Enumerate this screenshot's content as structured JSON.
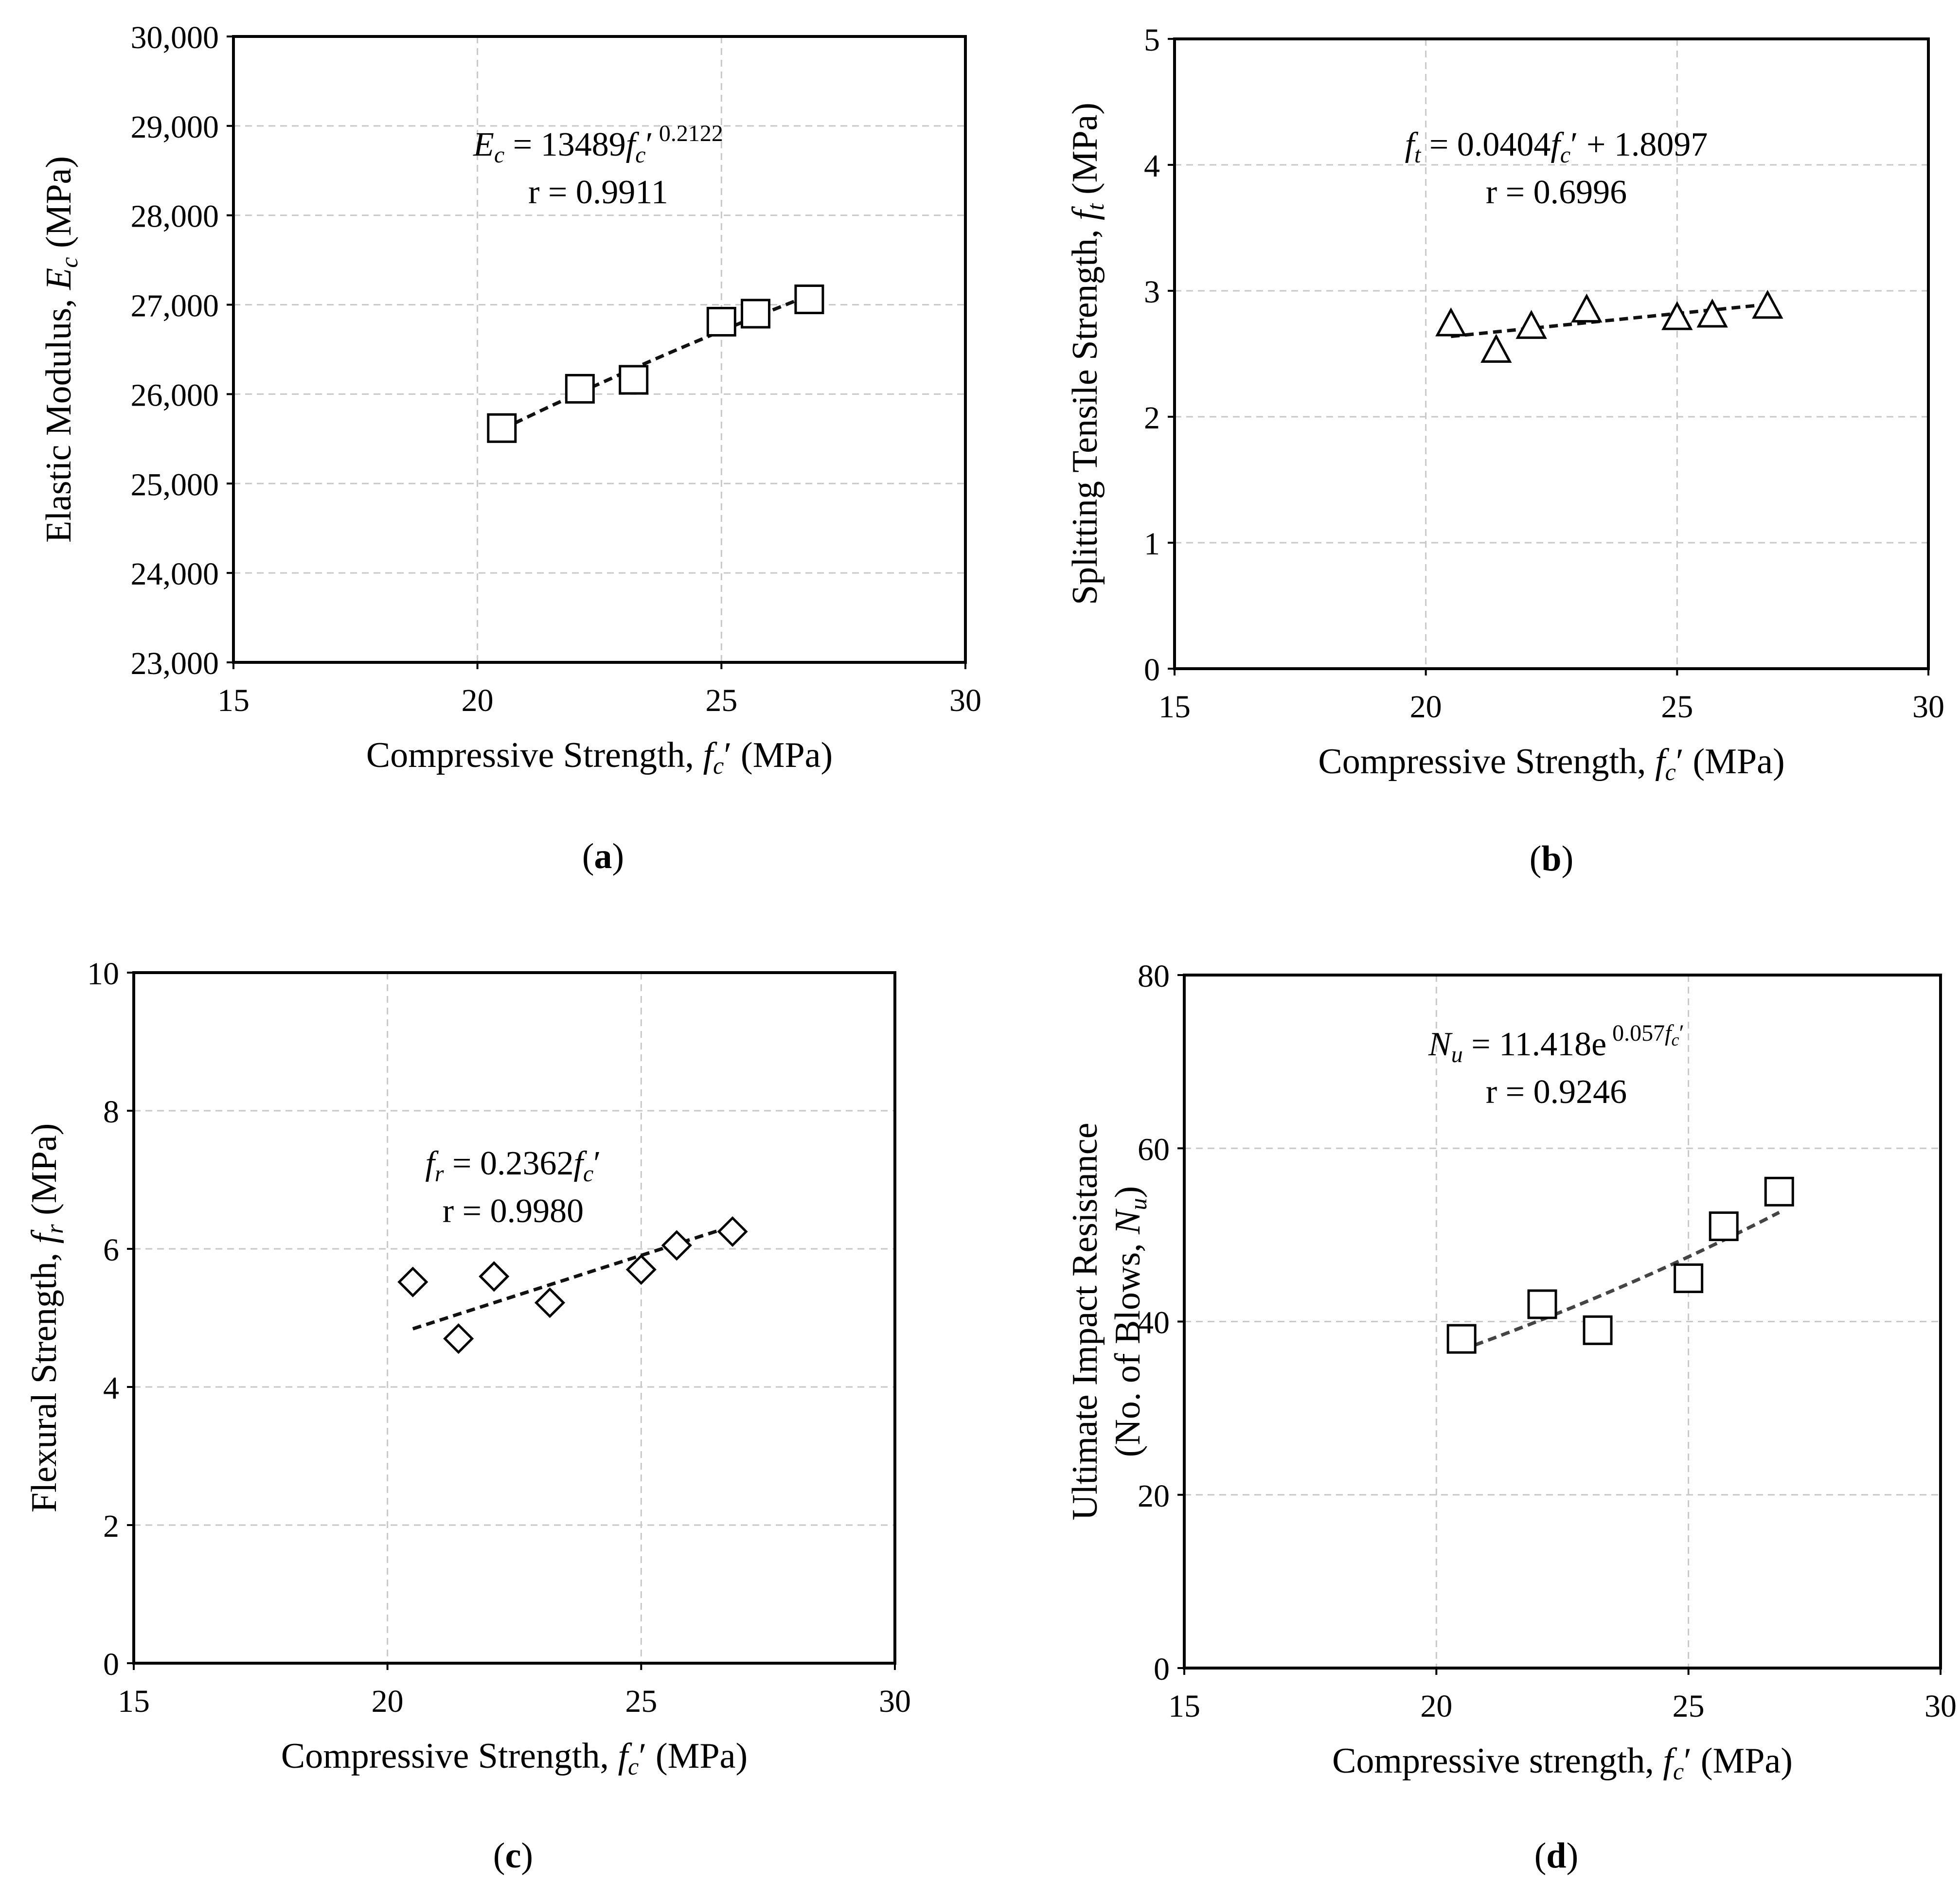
{
  "figure": {
    "panels": [
      "a",
      "b",
      "c",
      "d"
    ]
  },
  "chart_data": [
    {
      "id": "a",
      "type": "scatter",
      "panel_label": "a",
      "marker": "square",
      "xlabel_prefix": "Compressive Strength,",
      "xlabel_var": "f",
      "xlabel_sub": "c",
      "xlabel_suffix": "′ (MPa)",
      "ylabel_prefix": "Elastic Modulus,",
      "ylabel_var": "E",
      "ylabel_sub": "c",
      "ylabel_suffix": "(MPa)",
      "xlim": [
        15,
        30
      ],
      "ylim": [
        23000,
        30000
      ],
      "xticks": [
        15,
        20,
        25,
        30
      ],
      "yticks": [
        23000,
        24000,
        25000,
        26000,
        27000,
        28000,
        29000,
        30000
      ],
      "ytick_labels": [
        "23,000",
        "24,000",
        "25,000",
        "26,000",
        "27,000",
        "28,000",
        "29,000",
        "30,000"
      ],
      "grid": true,
      "x": [
        20.5,
        22.1,
        23.2,
        25.0,
        25.7,
        26.8
      ],
      "y": [
        25620,
        26060,
        26160,
        26810,
        26900,
        27060
      ],
      "trend": {
        "kind": "power",
        "a": 13489,
        "b": 0.2122,
        "x_start": 20.5,
        "x_end": 26.8
      },
      "equation": {
        "lhs_var": "E",
        "lhs_sub": "c",
        "rhs": "= 13489",
        "rhs_var": "f",
        "rhs_sub": "c",
        "rhs_tail": "′",
        "sup": "0.2122"
      },
      "r_text": "r = 0.9911"
    },
    {
      "id": "b",
      "type": "scatter",
      "panel_label": "b",
      "marker": "triangle",
      "xlabel_prefix": "Compressive Strength,",
      "xlabel_var": "f",
      "xlabel_sub": "c",
      "xlabel_suffix": "′ (MPa)",
      "ylabel_prefix": "Splitting Tensile Strength,",
      "ylabel_var": "f",
      "ylabel_sub": "t",
      "ylabel_suffix": "(MPa)",
      "xlim": [
        15,
        30
      ],
      "ylim": [
        0,
        5
      ],
      "xticks": [
        15,
        20,
        25,
        30
      ],
      "yticks": [
        0,
        1,
        2,
        3,
        4,
        5
      ],
      "ytick_labels": [
        "0",
        "1",
        "2",
        "3",
        "4",
        "5"
      ],
      "grid": true,
      "x": [
        20.5,
        21.4,
        22.1,
        23.2,
        25.0,
        25.7,
        26.8
      ],
      "y": [
        2.74,
        2.53,
        2.72,
        2.85,
        2.79,
        2.81,
        2.88
      ],
      "trend": {
        "kind": "linear",
        "a": 0.0404,
        "b": 1.8097,
        "x_start": 20.5,
        "x_end": 26.8
      },
      "equation": {
        "lhs_var": "f",
        "lhs_sub": "t",
        "rhs": "= 0.0404",
        "rhs_var": "f",
        "rhs_sub": "c",
        "rhs_tail": "′ + 1.8097",
        "sup": ""
      },
      "r_text": "r = 0.6996"
    },
    {
      "id": "c",
      "type": "scatter",
      "panel_label": "c",
      "marker": "diamond",
      "xlabel_prefix": "Compressive Strength,",
      "xlabel_var": "f",
      "xlabel_sub": "c",
      "xlabel_suffix": "′ (MPa)",
      "ylabel_prefix": "Flexural Strength,",
      "ylabel_var": "f",
      "ylabel_sub": "r",
      "ylabel_suffix": "(MPa)",
      "xlim": [
        15,
        30
      ],
      "ylim": [
        0,
        10
      ],
      "xticks": [
        15,
        20,
        25,
        30
      ],
      "yticks": [
        0,
        2,
        4,
        6,
        8,
        10
      ],
      "ytick_labels": [
        "0",
        "2",
        "4",
        "6",
        "8",
        "10"
      ],
      "grid": true,
      "x": [
        20.5,
        21.4,
        22.1,
        23.2,
        25.0,
        25.7,
        26.8
      ],
      "y": [
        5.52,
        4.7,
        5.6,
        5.22,
        5.7,
        6.05,
        6.25
      ],
      "trend": {
        "kind": "linear",
        "a": 0.2362,
        "b": 0,
        "x_start": 20.5,
        "x_end": 26.8
      },
      "equation": {
        "lhs_var": "f",
        "lhs_sub": "r",
        "rhs": "= 0.2362",
        "rhs_var": "f",
        "rhs_sub": "c",
        "rhs_tail": "′",
        "sup": ""
      },
      "r_text": "r = 0.9980"
    },
    {
      "id": "d",
      "type": "scatter",
      "panel_label": "d",
      "marker": "square",
      "xlabel_prefix": "Compressive strength,",
      "xlabel_var": "f",
      "xlabel_sub": "c",
      "xlabel_suffix": "′ (MPa)",
      "ylabel_line1": "Ultimate Impact Resistance",
      "ylabel_prefix": "(No. of Blows,",
      "ylabel_var": "N",
      "ylabel_sub": "u",
      "ylabel_suffix": ")",
      "xlim": [
        15,
        30
      ],
      "ylim": [
        0,
        80
      ],
      "xticks": [
        15,
        20,
        25,
        30
      ],
      "yticks": [
        0,
        20,
        40,
        60,
        80
      ],
      "ytick_labels": [
        "0",
        "20",
        "40",
        "60",
        "80"
      ],
      "grid": true,
      "x": [
        20.5,
        22.1,
        23.2,
        25.0,
        25.7,
        26.8
      ],
      "y": [
        38,
        42,
        39,
        45,
        51,
        55
      ],
      "trend": {
        "kind": "exponential",
        "a": 11.418,
        "b": 0.057,
        "x_start": 20.5,
        "x_end": 26.8
      },
      "equation": {
        "lhs_var": "N",
        "lhs_sub": "u",
        "rhs": "= 11.418e",
        "rhs_var": "",
        "rhs_sub": "",
        "rhs_tail": "",
        "sup": "0.057",
        "sup_var": "f",
        "sup_sub": "c",
        "sup_tail": "′"
      },
      "r_text": "r = 0.9246"
    }
  ]
}
